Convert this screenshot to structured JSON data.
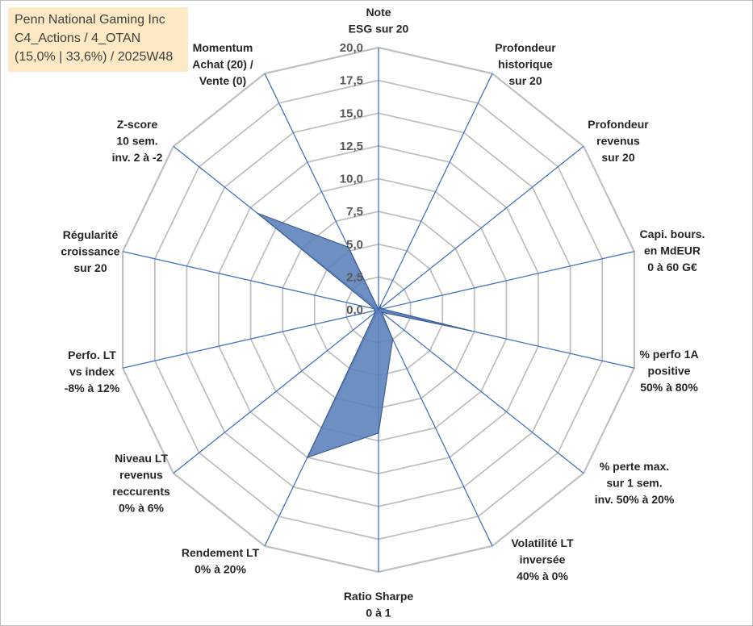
{
  "title_box": {
    "line1": "Penn National Gaming Inc",
    "line2": "C4_Actions / 4_OTAN",
    "line3": "(15,0% | 33,6%) / 2025W48"
  },
  "chart_data": {
    "type": "radar",
    "rlim": [
      0,
      20
    ],
    "ticks": [
      "0,0",
      "2,5",
      "5,0",
      "7,5",
      "10,0",
      "12,5",
      "15,0",
      "17,5",
      "20,0"
    ],
    "colors": {
      "fill": "#5a7fba",
      "stroke": "#3d5f96",
      "grid": "#c0c0c0",
      "spoke": "#4472c4"
    },
    "axes": [
      {
        "label": [
          "Note",
          "ESG sur 20"
        ],
        "value": 0
      },
      {
        "label": [
          "Profondeur",
          "historique",
          "sur 20"
        ],
        "value": 0.3
      },
      {
        "label": [
          "Profondeur",
          "revenus",
          "sur 20"
        ],
        "value": 0.2
      },
      {
        "label": [
          "Capi. bours.",
          "en MdEUR",
          "0 à 60 G€"
        ],
        "value": 0.3
      },
      {
        "label": [
          "% perfo 1A",
          "positive",
          "50% à 80%"
        ],
        "value": 7.2
      },
      {
        "label": [
          "% perte max.",
          "sur 1 sem.",
          "inv. 50% à 20%"
        ],
        "value": 0.3
      },
      {
        "label": [
          "Volatilité LT",
          "inversée",
          "40% à 0%"
        ],
        "value": 2.5
      },
      {
        "label": [
          "Ratio Sharpe",
          "0 à 1"
        ],
        "value": 9.4
      },
      {
        "label": [
          "Rendement LT",
          "0% à 20%"
        ],
        "value": 12.5
      },
      {
        "label": [
          "Niveau LT",
          "revenus",
          "reccurents",
          "0% à 6%"
        ],
        "value": 0.3
      },
      {
        "label": [
          "Perfo. LT",
          "vs index",
          "-8% à 12%"
        ],
        "value": 0.3
      },
      {
        "label": [
          "Régularité",
          "croissance",
          "sur 20"
        ],
        "value": 0.3
      },
      {
        "label": [
          "Z-score",
          "10 sem.",
          "inv. 2 à -2"
        ],
        "value": 11.8
      },
      {
        "label": [
          "Momentum",
          "Achat (20) /",
          "Vente (0)"
        ],
        "value": 5.3
      }
    ]
  }
}
